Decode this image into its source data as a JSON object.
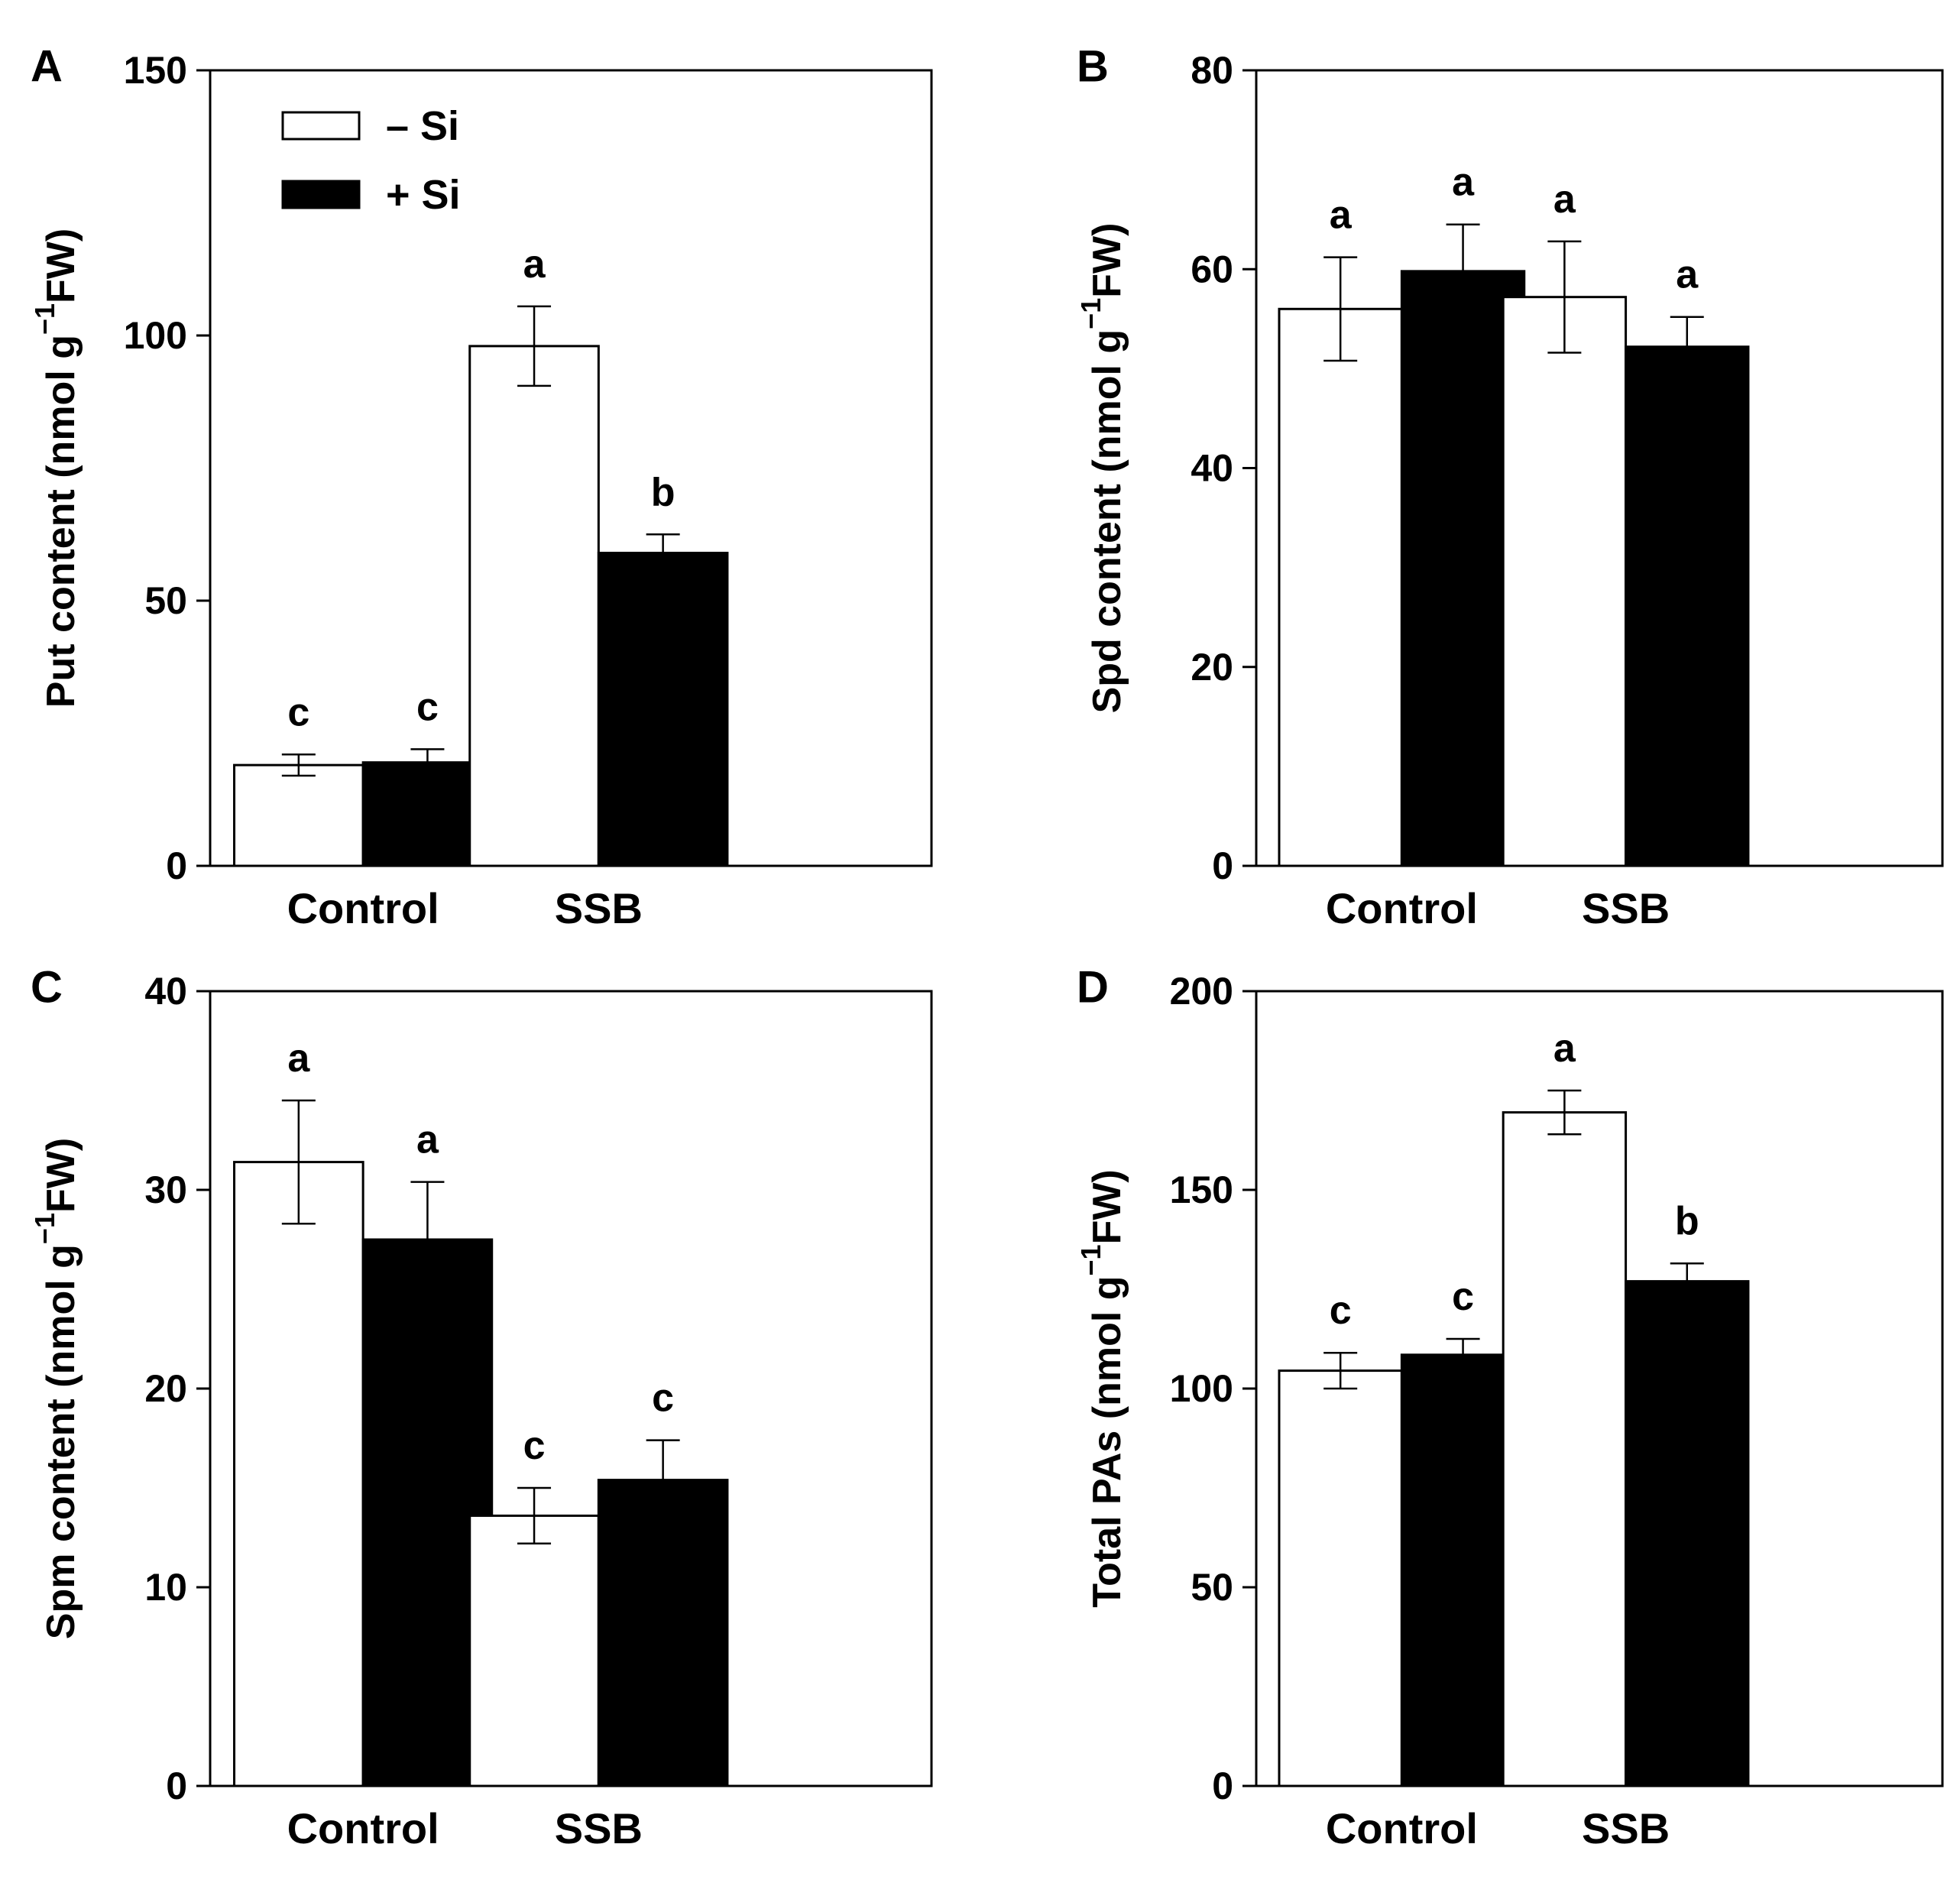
{
  "figure": {
    "legend": [
      {
        "label": "– Si",
        "fill": "#ffffff"
      },
      {
        "label": "+ Si",
        "fill": "#000000"
      }
    ],
    "colors": {
      "minus_si": "#ffffff",
      "plus_si": "#000000",
      "stroke": "#000000"
    }
  },
  "chart_data": [
    {
      "panel": "A",
      "type": "bar",
      "ylabel_main": "Put content (nmol g",
      "ylabel_sup": "−1",
      "ylabel_end": "FW)",
      "categories": [
        "Control",
        "SSB"
      ],
      "ylim": [
        0,
        150
      ],
      "yticks": [
        0,
        50,
        100,
        150
      ],
      "legend_position": "top-left",
      "series": [
        {
          "name": "– Si",
          "values": [
            19,
            98
          ],
          "errors": [
            2,
            7.5
          ],
          "letters": [
            "c",
            "a"
          ]
        },
        {
          "name": "+ Si",
          "values": [
            19.5,
            59
          ],
          "errors": [
            2.5,
            3.5
          ],
          "letters": [
            "c",
            "b"
          ]
        }
      ]
    },
    {
      "panel": "B",
      "type": "bar",
      "ylabel_main": "Spd content (nmol g",
      "ylabel_sup": "−1",
      "ylabel_end": "FW)",
      "categories": [
        "Control",
        "SSB"
      ],
      "ylim": [
        0,
        80
      ],
      "yticks": [
        0,
        20,
        40,
        60,
        80
      ],
      "series": [
        {
          "name": "– Si",
          "values": [
            56,
            57.2
          ],
          "errors": [
            5.2,
            5.6
          ],
          "letters": [
            "a",
            "a"
          ]
        },
        {
          "name": "+ Si",
          "values": [
            59.8,
            52.2
          ],
          "errors": [
            4.7,
            3
          ],
          "letters": [
            "a",
            "a"
          ]
        }
      ]
    },
    {
      "panel": "C",
      "type": "bar",
      "ylabel_main": "Spm content (nmol g",
      "ylabel_sup": "−1",
      "ylabel_end": "FW)",
      "categories": [
        "Control",
        "SSB"
      ],
      "ylim": [
        0,
        40
      ],
      "yticks": [
        0,
        10,
        20,
        30,
        40
      ],
      "series": [
        {
          "name": "– Si",
          "values": [
            31.4,
            13.6
          ],
          "errors": [
            3.1,
            1.4
          ],
          "letters": [
            "a",
            "c"
          ]
        },
        {
          "name": "+ Si",
          "values": [
            27.5,
            15.4
          ],
          "errors": [
            2.9,
            2
          ],
          "letters": [
            "a",
            "c"
          ]
        }
      ]
    },
    {
      "panel": "D",
      "type": "bar",
      "ylabel_main": "Total PAs (nmol g",
      "ylabel_sup": "−1",
      "ylabel_end": "FW)",
      "categories": [
        "Control",
        "SSB"
      ],
      "ylim": [
        0,
        200
      ],
      "yticks": [
        0,
        50,
        100,
        150,
        200
      ],
      "series": [
        {
          "name": "– Si",
          "values": [
            104.5,
            169.5
          ],
          "errors": [
            4.5,
            5.5
          ],
          "letters": [
            "c",
            "a"
          ]
        },
        {
          "name": "+ Si",
          "values": [
            108.5,
            127
          ],
          "errors": [
            4,
            4.5
          ],
          "letters": [
            "c",
            "b"
          ]
        }
      ]
    }
  ]
}
